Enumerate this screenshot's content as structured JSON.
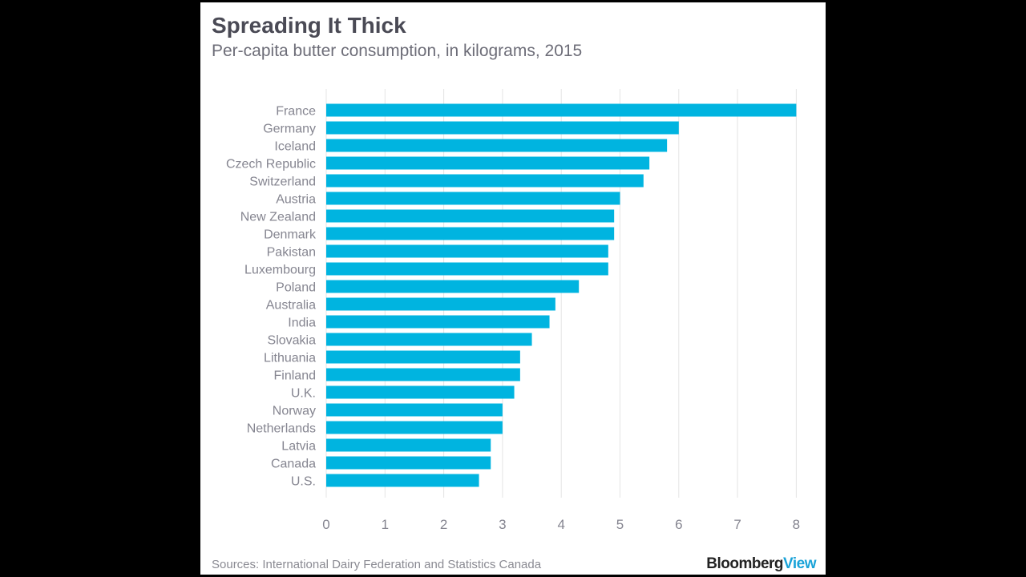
{
  "colors": {
    "bar": "#00b4e0",
    "grid": "#e4e4e4",
    "label": "#858590",
    "background": "#ffffff"
  },
  "chart_data": {
    "type": "bar",
    "orientation": "horizontal",
    "title": "Spreading It Thick",
    "subtitle": "Per-capita butter consumption, in kilograms, 2015",
    "categories": [
      "France",
      "Germany",
      "Iceland",
      "Czech Republic",
      "Switzerland",
      "Austria",
      "New Zealand",
      "Denmark",
      "Pakistan",
      "Luxembourg",
      "Poland",
      "Australia",
      "India",
      "Slovakia",
      "Lithuania",
      "Finland",
      "U.K.",
      "Norway",
      "Netherlands",
      "Latvia",
      "Canada",
      "U.S."
    ],
    "values": [
      8.0,
      6.0,
      5.8,
      5.5,
      5.4,
      5.0,
      4.9,
      4.9,
      4.8,
      4.8,
      4.3,
      3.9,
      3.8,
      3.5,
      3.3,
      3.3,
      3.2,
      3.0,
      3.0,
      2.8,
      2.8,
      2.6
    ],
    "xlim": [
      0,
      8
    ],
    "xticks": [
      0,
      1,
      2,
      3,
      4,
      5,
      6,
      7,
      8
    ],
    "grid": true,
    "xlabel": "",
    "ylabel": ""
  },
  "footer": {
    "source": "Sources: International Dairy Federation and Statistics Canada",
    "logo_main": "Bloomberg",
    "logo_accent": "View"
  }
}
